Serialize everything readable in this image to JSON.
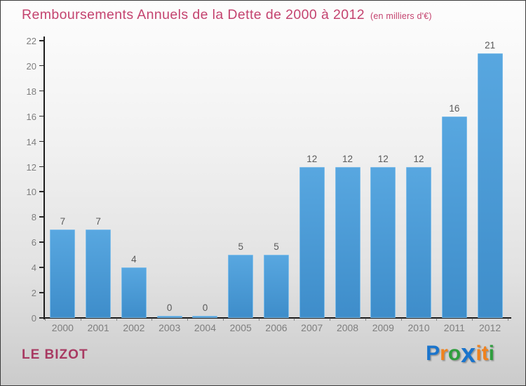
{
  "header": {
    "title": "Remboursements Annuels de la Dette de 2000 à 2012",
    "subtitle": "(en milliers d'€)",
    "title_color": "#c4436f"
  },
  "chart_data": {
    "type": "bar",
    "title": "Remboursements Annuels de la Dette de 2000 à 2012 (en milliers d'€)",
    "categories": [
      "2000",
      "2001",
      "2002",
      "2003",
      "2004",
      "2005",
      "2006",
      "2007",
      "2008",
      "2009",
      "2010",
      "2011",
      "2012"
    ],
    "values": [
      7,
      7,
      4,
      0,
      0,
      5,
      5,
      12,
      12,
      12,
      12,
      16,
      21
    ],
    "xlabel": "",
    "ylabel": "",
    "ylim": [
      0,
      22
    ],
    "ytick_step": 2,
    "grid": "off",
    "legend": "none",
    "value_labels_shown": true,
    "colors": {
      "bar_top": "#58a7e0",
      "bar_bottom": "#3e8dca",
      "bar_border": "#7fbde9",
      "value_label": "#5a5a5a",
      "axis_tick_label": "#7e7e7e",
      "axis_line": "#1c1c1c"
    }
  },
  "footer": {
    "commune": "LE BIZOT",
    "commune_color": "#a83a62",
    "logo_name": "Proxiti",
    "logo_letters": [
      {
        "ch": "P",
        "color": "#1a74cc",
        "big": false
      },
      {
        "ch": "r",
        "color": "#f0821e",
        "big": false
      },
      {
        "ch": "o",
        "color": "#2f9e3e",
        "big": false
      },
      {
        "ch": "x",
        "color": "#1a74cc",
        "big": true
      },
      {
        "ch": "i",
        "color": "#f0821e",
        "big": false
      },
      {
        "ch": "t",
        "color": "#f0821e",
        "big": false
      },
      {
        "ch": "i",
        "color": "#2f9e3e",
        "big": false
      }
    ]
  }
}
